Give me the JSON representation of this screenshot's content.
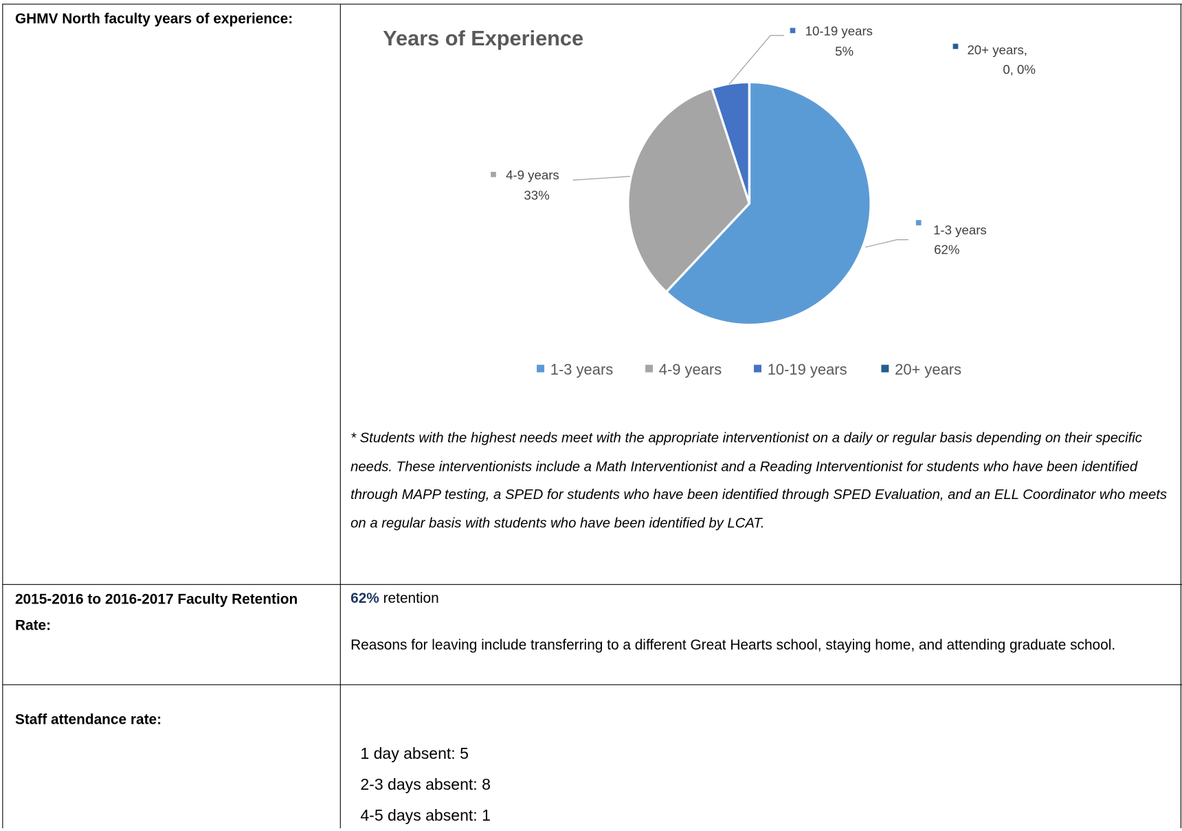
{
  "table": {
    "rows": [
      {
        "label": "GHMV North faculty years of experience:",
        "chart_data": {
          "type": "pie",
          "title": "Years of Experience",
          "categories": [
            "1-3 years",
            "4-9 years",
            "10-19 years",
            "20+ years"
          ],
          "values": [
            62,
            33,
            5,
            0
          ],
          "value_labels": [
            "62%",
            "33%",
            "5%",
            "0, 0%"
          ],
          "data_label_names": [
            "1-3 years",
            "4-9 years",
            "10-19 years",
            "20+ years,"
          ],
          "colors": [
            "#5b9bd5",
            "#a5a5a5",
            "#4472c4",
            "#255e91"
          ],
          "legend": "bottom"
        },
        "note": "* Students with the highest needs meet with the appropriate interventionist on a daily or regular basis depending on their specific needs. These interventionists include a Math Interventionist and a Reading Interventionist for students who have been identified through MAPP testing, a SPED for students who have been identified through SPED Evaluation, and an ELL Coordinator who meets on a regular basis with students who have been identified by LCAT."
      },
      {
        "label": "2015-2016 to 2016-2017 Faculty Retention Rate:",
        "highlight": "62%",
        "text": "retention",
        "paragraph": "Reasons for leaving include transferring to a different Great Hearts school, staying home, and attending graduate school."
      },
      {
        "label": "Staff attendance rate:",
        "items": [
          "1 day absent: 5",
          "2-3 days absent: 8",
          "4-5 days absent: 1"
        ]
      }
    ]
  }
}
